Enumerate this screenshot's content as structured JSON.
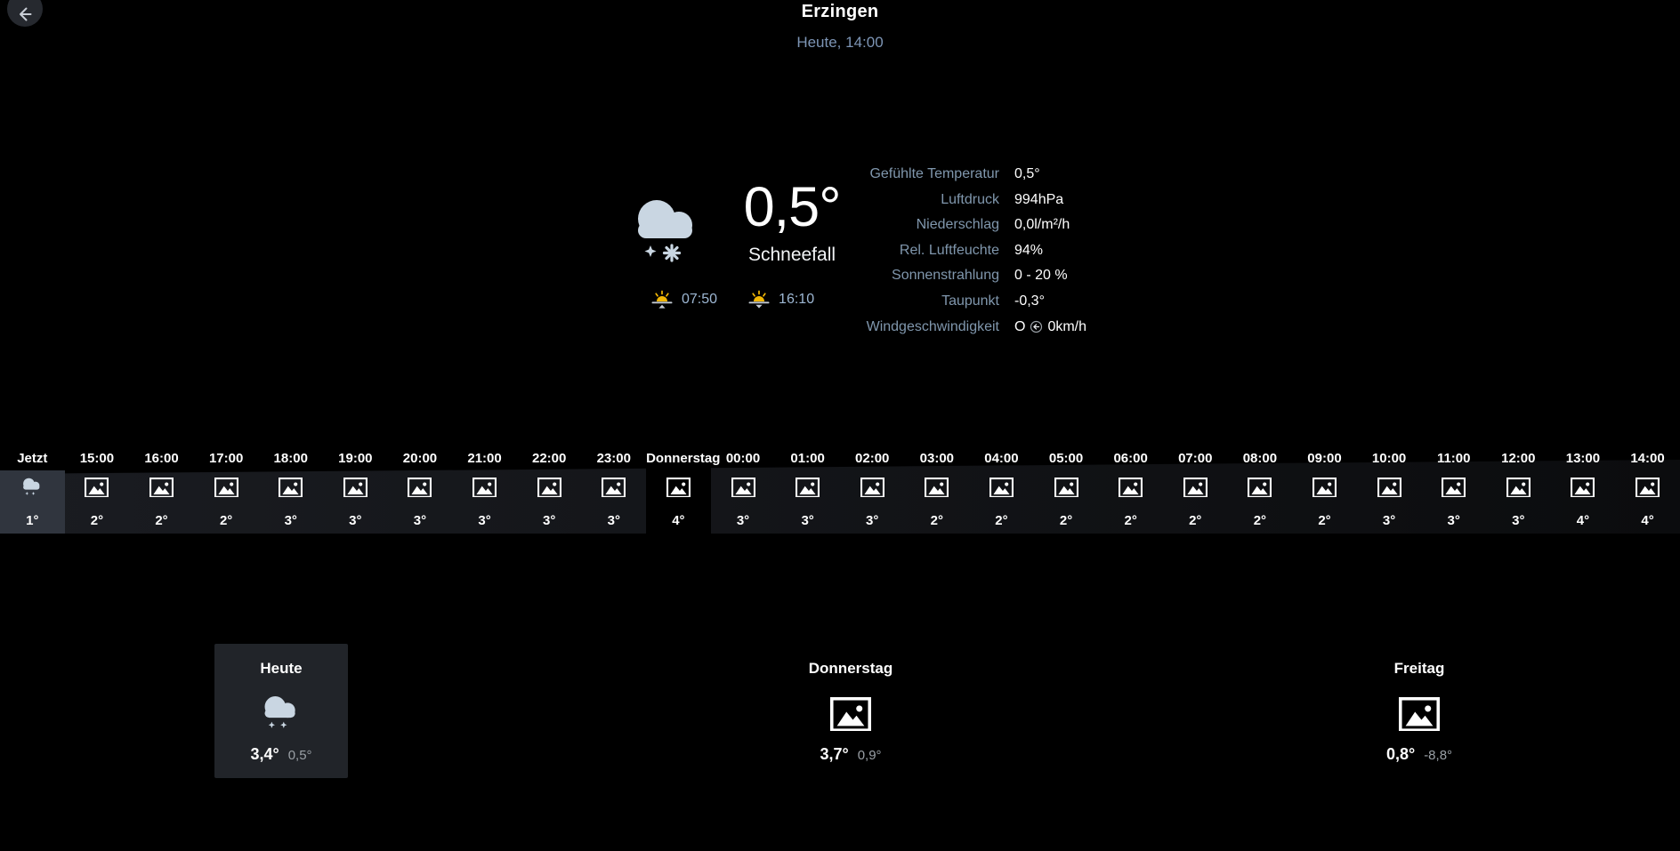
{
  "header": {
    "title": "Erzingen",
    "subtitle": "Heute, 14:00"
  },
  "current": {
    "temperature": "0,5°",
    "condition": "Schneefall",
    "icon": "snow-cloud",
    "sunrise_time": "07:50",
    "sunset_time": "16:10",
    "details": [
      {
        "label": "Gefühlte Temperatur",
        "value": "0,5°"
      },
      {
        "label": "Luftdruck",
        "value": "994hPa"
      },
      {
        "label": "Niederschlag",
        "value": "0,0l/m²/h"
      },
      {
        "label": "Rel. Luftfeuchte",
        "value": "94%"
      },
      {
        "label": "Sonnenstrahlung",
        "value": "0 - 20 %"
      },
      {
        "label": "Taupunkt",
        "value": "-0,3°"
      },
      {
        "label": "Windgeschwindigkeit",
        "prefix": "O",
        "icon": "wind-direction-left",
        "value": "0km/h"
      }
    ]
  },
  "hourly": [
    {
      "time": "Jetzt",
      "temp": "1°",
      "icon": "snow-cloud",
      "state": "selected"
    },
    {
      "time": "15:00",
      "temp": "2°",
      "icon": "placeholder"
    },
    {
      "time": "16:00",
      "temp": "2°",
      "icon": "placeholder"
    },
    {
      "time": "17:00",
      "temp": "2°",
      "icon": "placeholder"
    },
    {
      "time": "18:00",
      "temp": "3°",
      "icon": "placeholder"
    },
    {
      "time": "19:00",
      "temp": "3°",
      "icon": "placeholder"
    },
    {
      "time": "20:00",
      "temp": "3°",
      "icon": "placeholder"
    },
    {
      "time": "21:00",
      "temp": "3°",
      "icon": "placeholder"
    },
    {
      "time": "22:00",
      "temp": "3°",
      "icon": "placeholder"
    },
    {
      "time": "23:00",
      "temp": "3°",
      "icon": "placeholder"
    },
    {
      "time": "Donnerstag",
      "temp": "4°",
      "icon": "placeholder",
      "state": "day-divider"
    },
    {
      "time": "00:00",
      "temp": "3°",
      "icon": "placeholder"
    },
    {
      "time": "01:00",
      "temp": "3°",
      "icon": "placeholder"
    },
    {
      "time": "02:00",
      "temp": "3°",
      "icon": "placeholder"
    },
    {
      "time": "03:00",
      "temp": "2°",
      "icon": "placeholder"
    },
    {
      "time": "04:00",
      "temp": "2°",
      "icon": "placeholder"
    },
    {
      "time": "05:00",
      "temp": "2°",
      "icon": "placeholder"
    },
    {
      "time": "06:00",
      "temp": "2°",
      "icon": "placeholder"
    },
    {
      "time": "07:00",
      "temp": "2°",
      "icon": "placeholder"
    },
    {
      "time": "08:00",
      "temp": "2°",
      "icon": "placeholder"
    },
    {
      "time": "09:00",
      "temp": "2°",
      "icon": "placeholder"
    },
    {
      "time": "10:00",
      "temp": "3°",
      "icon": "placeholder"
    },
    {
      "time": "11:00",
      "temp": "3°",
      "icon": "placeholder"
    },
    {
      "time": "12:00",
      "temp": "3°",
      "icon": "placeholder"
    },
    {
      "time": "13:00",
      "temp": "4°",
      "icon": "placeholder"
    },
    {
      "time": "14:00",
      "temp": "4°",
      "icon": "placeholder"
    }
  ],
  "daily": [
    {
      "day": "Heute",
      "high": "3,4°",
      "low": "0,5°",
      "icon": "snow-cloud",
      "selected": true
    },
    {
      "day": "Donnerstag",
      "high": "3,7°",
      "low": "0,9°",
      "icon": "placeholder",
      "selected": false
    },
    {
      "day": "Freitag",
      "high": "0,8°",
      "low": "-8,8°",
      "icon": "placeholder",
      "selected": false
    }
  ],
  "colors": {
    "accent_label": "#8097ad",
    "subtitle": "#7d95b5",
    "sun_time": "#9db7d3",
    "secondary_text": "#9aa0a6",
    "cloud": "#c9d6e2",
    "sun": "#f2b705",
    "selected_hour_bg": "#30353e",
    "selected_card_bg": "#212429"
  }
}
